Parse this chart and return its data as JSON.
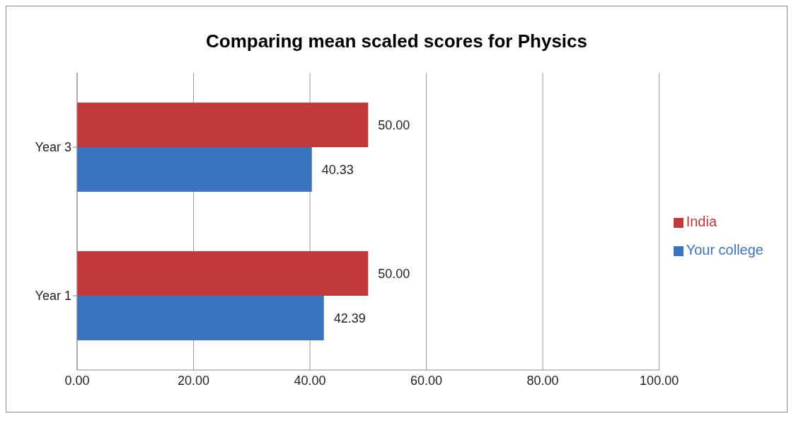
{
  "chart_data": {
    "type": "bar",
    "orientation": "horizontal",
    "title": "Comparing mean scaled scores for Physics",
    "categories": [
      "Year 3",
      "Year 1"
    ],
    "series": [
      {
        "name": "India",
        "color": "#c0393b",
        "values": [
          50,
          50
        ],
        "value_labels": [
          "50.00",
          "50.00"
        ]
      },
      {
        "name": "Your college",
        "color": "#3a73c0",
        "values": [
          40.33,
          42.39
        ],
        "value_labels": [
          "40.33",
          "42.39"
        ]
      }
    ],
    "xlim": [
      0,
      100
    ],
    "xticks": [
      {
        "value": 0,
        "label": "0.00"
      },
      {
        "value": 20,
        "label": "20.00"
      },
      {
        "value": 40,
        "label": "40.00"
      },
      {
        "value": 60,
        "label": "60.00"
      },
      {
        "value": 80,
        "label": "80.00"
      },
      {
        "value": 100,
        "label": "100.00"
      }
    ],
    "grid": "x",
    "legend": "right"
  }
}
